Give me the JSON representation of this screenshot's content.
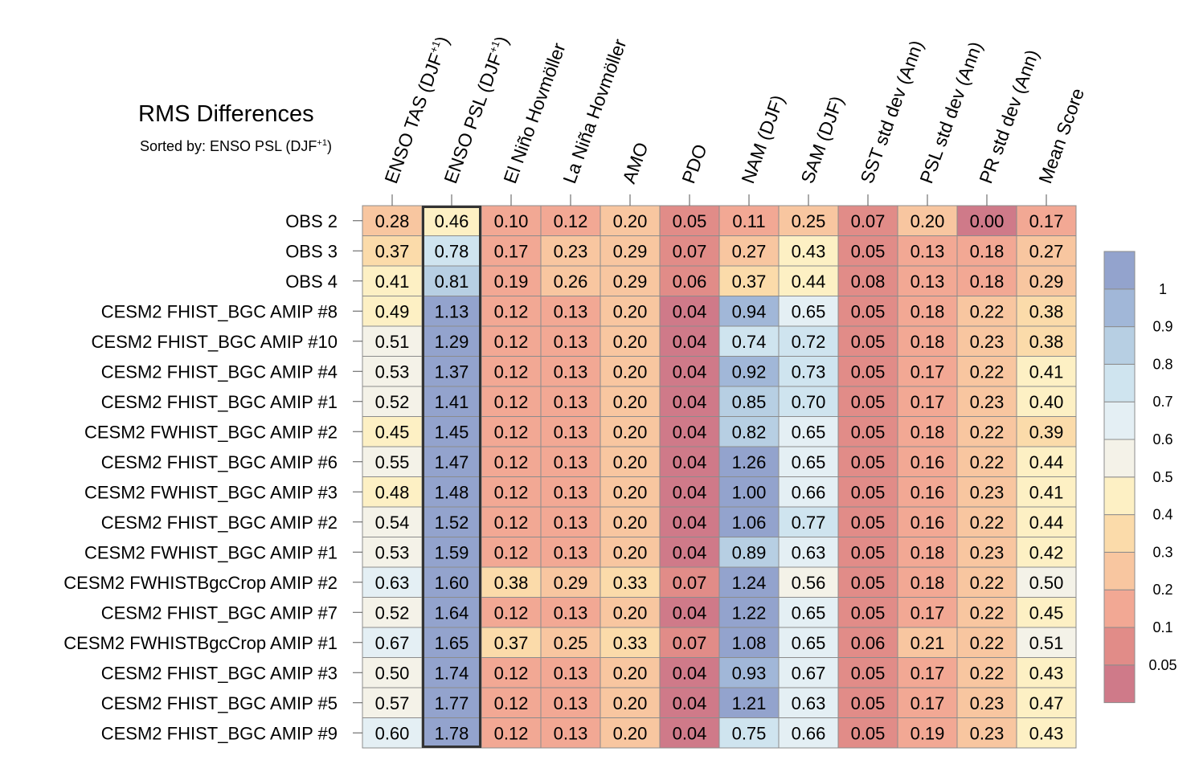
{
  "title": "RMS Differences",
  "subtitle": "Sorted by: ENSO PSL (DJF",
  "subtitle_sup": "+1",
  "subtitle_end": ")",
  "chart_data": {
    "type": "heatmap",
    "title": "RMS Differences",
    "sorted_by": "ENSO PSL (DJF+1)",
    "highlighted_column": 1,
    "columns": [
      {
        "label": "ENSO TAS (DJF",
        "sup": "+1",
        "end": ")"
      },
      {
        "label": "ENSO PSL (DJF",
        "sup": "+1",
        "end": ")"
      },
      {
        "label": "El Niño Hovmöller"
      },
      {
        "label": "La Niña Hovmöller"
      },
      {
        "label": "AMO"
      },
      {
        "label": "PDO"
      },
      {
        "label": "NAM (DJF)"
      },
      {
        "label": "SAM (DJF)"
      },
      {
        "label": "SST std dev (Ann)"
      },
      {
        "label": "PSL std dev (Ann)"
      },
      {
        "label": "PR std dev (Ann)"
      },
      {
        "label": "Mean Score"
      }
    ],
    "rows": [
      "OBS 2",
      "OBS 3",
      "OBS 4",
      "CESM2 FHIST_BGC AMIP #8",
      "CESM2 FHIST_BGC AMIP #10",
      "CESM2 FHIST_BGC AMIP #4",
      "CESM2 FHIST_BGC AMIP #1",
      "CESM2 FWHIST_BGC AMIP #2",
      "CESM2 FHIST_BGC AMIP #6",
      "CESM2 FWHIST_BGC AMIP #3",
      "CESM2 FHIST_BGC AMIP #2",
      "CESM2 FWHIST_BGC AMIP #1",
      "CESM2 FWHISTBgcCrop AMIP #2",
      "CESM2 FHIST_BGC AMIP #7",
      "CESM2 FWHISTBgcCrop AMIP #1",
      "CESM2 FHIST_BGC AMIP #3",
      "CESM2 FHIST_BGC AMIP #5",
      "CESM2 FHIST_BGC AMIP #9"
    ],
    "values": [
      [
        "0.28",
        "0.46",
        "0.10",
        "0.12",
        "0.20",
        "0.05",
        "0.11",
        "0.25",
        "0.07",
        "0.20",
        "0.00",
        "0.17"
      ],
      [
        "0.37",
        "0.78",
        "0.17",
        "0.23",
        "0.29",
        "0.07",
        "0.27",
        "0.43",
        "0.05",
        "0.13",
        "0.18",
        "0.27"
      ],
      [
        "0.41",
        "0.81",
        "0.19",
        "0.26",
        "0.29",
        "0.06",
        "0.37",
        "0.44",
        "0.08",
        "0.13",
        "0.18",
        "0.29"
      ],
      [
        "0.49",
        "1.13",
        "0.12",
        "0.13",
        "0.20",
        "0.04",
        "0.94",
        "0.65",
        "0.05",
        "0.18",
        "0.22",
        "0.38"
      ],
      [
        "0.51",
        "1.29",
        "0.12",
        "0.13",
        "0.20",
        "0.04",
        "0.74",
        "0.72",
        "0.05",
        "0.18",
        "0.23",
        "0.38"
      ],
      [
        "0.53",
        "1.37",
        "0.12",
        "0.13",
        "0.20",
        "0.04",
        "0.92",
        "0.73",
        "0.05",
        "0.17",
        "0.22",
        "0.41"
      ],
      [
        "0.52",
        "1.41",
        "0.12",
        "0.13",
        "0.20",
        "0.04",
        "0.85",
        "0.70",
        "0.05",
        "0.17",
        "0.23",
        "0.40"
      ],
      [
        "0.45",
        "1.45",
        "0.12",
        "0.13",
        "0.20",
        "0.04",
        "0.82",
        "0.65",
        "0.05",
        "0.18",
        "0.22",
        "0.39"
      ],
      [
        "0.55",
        "1.47",
        "0.12",
        "0.13",
        "0.20",
        "0.04",
        "1.26",
        "0.65",
        "0.05",
        "0.16",
        "0.22",
        "0.44"
      ],
      [
        "0.48",
        "1.48",
        "0.12",
        "0.13",
        "0.20",
        "0.04",
        "1.00",
        "0.66",
        "0.05",
        "0.16",
        "0.23",
        "0.41"
      ],
      [
        "0.54",
        "1.52",
        "0.12",
        "0.13",
        "0.20",
        "0.04",
        "1.06",
        "0.77",
        "0.05",
        "0.16",
        "0.22",
        "0.44"
      ],
      [
        "0.53",
        "1.59",
        "0.12",
        "0.13",
        "0.20",
        "0.04",
        "0.89",
        "0.63",
        "0.05",
        "0.18",
        "0.23",
        "0.42"
      ],
      [
        "0.63",
        "1.60",
        "0.38",
        "0.29",
        "0.33",
        "0.07",
        "1.24",
        "0.56",
        "0.05",
        "0.18",
        "0.22",
        "0.50"
      ],
      [
        "0.52",
        "1.64",
        "0.12",
        "0.13",
        "0.20",
        "0.04",
        "1.22",
        "0.65",
        "0.05",
        "0.17",
        "0.22",
        "0.45"
      ],
      [
        "0.67",
        "1.65",
        "0.37",
        "0.25",
        "0.33",
        "0.07",
        "1.08",
        "0.65",
        "0.06",
        "0.21",
        "0.22",
        "0.51"
      ],
      [
        "0.50",
        "1.74",
        "0.12",
        "0.13",
        "0.20",
        "0.04",
        "0.93",
        "0.67",
        "0.05",
        "0.17",
        "0.22",
        "0.43"
      ],
      [
        "0.57",
        "1.77",
        "0.12",
        "0.13",
        "0.20",
        "0.04",
        "1.21",
        "0.63",
        "0.05",
        "0.17",
        "0.23",
        "0.47"
      ],
      [
        "0.60",
        "1.78",
        "0.12",
        "0.13",
        "0.20",
        "0.04",
        "0.75",
        "0.66",
        "0.05",
        "0.19",
        "0.23",
        "0.43"
      ]
    ],
    "colorbar": {
      "levels": [
        0.05,
        0.1,
        0.2,
        0.3,
        0.4,
        0.5,
        0.6,
        0.7,
        0.8,
        0.9,
        1
      ],
      "labels": [
        "0.05",
        "0.1",
        "0.2",
        "0.3",
        "0.4",
        "0.5",
        "0.6",
        "0.7",
        "0.8",
        "0.9",
        "1"
      ],
      "colors": [
        "#cf7a89",
        "#e18c88",
        "#f2a894",
        "#f8c6a0",
        "#fbdbaa",
        "#fdf0c4",
        "#f4f2e8",
        "#e4eff4",
        "#cfe4ef",
        "#b7cfe3",
        "#a1b7d8",
        "#93a3cd"
      ]
    }
  }
}
